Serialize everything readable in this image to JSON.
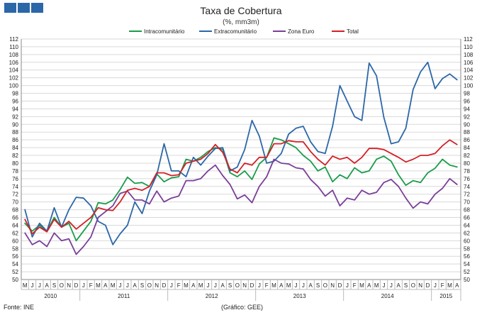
{
  "header": {
    "title": "Taxa de Cobertura",
    "subtitle": "(%, mm3m)"
  },
  "footer": {
    "source": "Fonte: INE",
    "graphic": "(Gráfico: GEE)"
  },
  "colors": {
    "logo": "#2c67a8",
    "grid": "#d9d9d9",
    "axis": "#888888"
  },
  "chart_data": {
    "type": "line",
    "title": "Taxa de Cobertura",
    "subtitle": "(%, mm3m)",
    "ylim": [
      50,
      112
    ],
    "yticks": [
      50,
      52,
      54,
      56,
      58,
      60,
      62,
      64,
      66,
      68,
      70,
      72,
      74,
      76,
      78,
      80,
      82,
      84,
      86,
      88,
      90,
      92,
      94,
      96,
      98,
      100,
      102,
      104,
      106,
      108,
      110,
      112
    ],
    "grid": true,
    "legend_position": "top",
    "month_labels": [
      "M",
      "J",
      "J",
      "A",
      "S",
      "O",
      "N",
      "D",
      "J",
      "F",
      "M",
      "A",
      "M",
      "J",
      "J",
      "A",
      "S",
      "O",
      "N",
      "D",
      "J",
      "F",
      "M",
      "A",
      "M",
      "J",
      "J",
      "A",
      "S",
      "O",
      "N",
      "D",
      "J",
      "F",
      "M",
      "A",
      "M",
      "J",
      "J",
      "A",
      "S",
      "O",
      "N",
      "D",
      "J",
      "F",
      "M",
      "A",
      "M",
      "J",
      "J",
      "A",
      "S",
      "O",
      "N",
      "D",
      "J",
      "F",
      "M",
      "A"
    ],
    "year_labels": [
      {
        "label": "2010",
        "start": 0,
        "end": 7
      },
      {
        "label": "2011",
        "start": 8,
        "end": 19
      },
      {
        "label": "2012",
        "start": 20,
        "end": 31
      },
      {
        "label": "2013",
        "start": 32,
        "end": 43
      },
      {
        "label": "2014",
        "start": 44,
        "end": 55
      },
      {
        "label": "2015",
        "start": 56,
        "end": 59
      }
    ],
    "series": [
      {
        "name": "Intracomunitário",
        "color": "#1a9c4a",
        "values": [
          64.5,
          62.5,
          64.0,
          62.5,
          66.0,
          63.5,
          64.5,
          60.0,
          62.5,
          65.0,
          69.8,
          69.5,
          70.5,
          73.2,
          76.4,
          74.8,
          75.0,
          74.0,
          77.2,
          75.2,
          76.2,
          76.5,
          81.0,
          80.5,
          81.5,
          83.0,
          84.0,
          83.5,
          77.5,
          76.5,
          78.0,
          75.8,
          79.8,
          81.5,
          86.5,
          86.0,
          85.0,
          84.0,
          82.0,
          80.5,
          78.0,
          79.0,
          75.2,
          77.0,
          76.0,
          78.8,
          77.5,
          78.0,
          81.0,
          81.8,
          80.5,
          77.0,
          74.3,
          75.5,
          75.0,
          77.5,
          78.7,
          81.0,
          79.5,
          79.0
        ]
      },
      {
        "name": "Extracomunitário",
        "color": "#2c67a8",
        "values": [
          68.0,
          61.0,
          64.5,
          62.5,
          68.5,
          63.5,
          68.0,
          71.2,
          71.0,
          69.0,
          65.0,
          64.0,
          59.0,
          61.8,
          64.0,
          70.0,
          67.0,
          72.8,
          77.0,
          85.0,
          78.0,
          78.0,
          76.5,
          81.5,
          79.5,
          81.8,
          83.8,
          84.0,
          78.0,
          79.0,
          83.5,
          91.0,
          87.0,
          80.0,
          80.5,
          82.5,
          87.5,
          89.0,
          89.5,
          85.5,
          83.0,
          82.5,
          89.5,
          100.0,
          96.0,
          92.0,
          91.0,
          105.8,
          102.5,
          91.8,
          85.0,
          85.5,
          89.0,
          99.0,
          103.5,
          106.0,
          99.2,
          101.8,
          103.0,
          101.5
        ]
      },
      {
        "name": "Zona Euro",
        "color": "#7a3f98",
        "values": [
          62.0,
          59.0,
          60.0,
          58.5,
          62.0,
          60.0,
          60.5,
          56.5,
          58.5,
          61.0,
          66.0,
          67.5,
          69.0,
          72.2,
          72.8,
          70.5,
          70.5,
          69.5,
          72.8,
          70.0,
          71.0,
          71.5,
          75.5,
          75.5,
          76.0,
          78.0,
          79.5,
          76.8,
          74.5,
          70.8,
          71.8,
          69.8,
          74.0,
          76.5,
          81.0,
          80.0,
          79.8,
          78.8,
          78.5,
          75.8,
          74.0,
          71.5,
          73.0,
          69.0,
          71.0,
          70.5,
          73.0,
          72.0,
          72.5,
          75.0,
          75.8,
          74.0,
          71.0,
          68.4,
          70.0,
          69.5,
          72.0,
          73.5,
          76.0,
          74.5
        ]
      },
      {
        "name": "Total",
        "color": "#d42026",
        "values": [
          65.5,
          61.8,
          63.5,
          62.3,
          65.5,
          63.5,
          65.0,
          63.0,
          64.5,
          66.0,
          68.5,
          68.0,
          67.8,
          70.0,
          73.0,
          73.5,
          73.0,
          74.0,
          77.5,
          77.5,
          76.8,
          77.0,
          80.0,
          80.5,
          81.0,
          82.5,
          84.8,
          82.8,
          78.5,
          77.5,
          80.0,
          79.5,
          81.5,
          81.5,
          85.0,
          85.0,
          85.8,
          85.5,
          85.5,
          83.0,
          81.0,
          79.5,
          81.8,
          81.0,
          81.5,
          80.0,
          81.5,
          83.8,
          83.8,
          83.5,
          82.5,
          81.5,
          80.3,
          81.0,
          82.0,
          82.0,
          82.5,
          84.5,
          86.0,
          84.8
        ]
      }
    ]
  }
}
